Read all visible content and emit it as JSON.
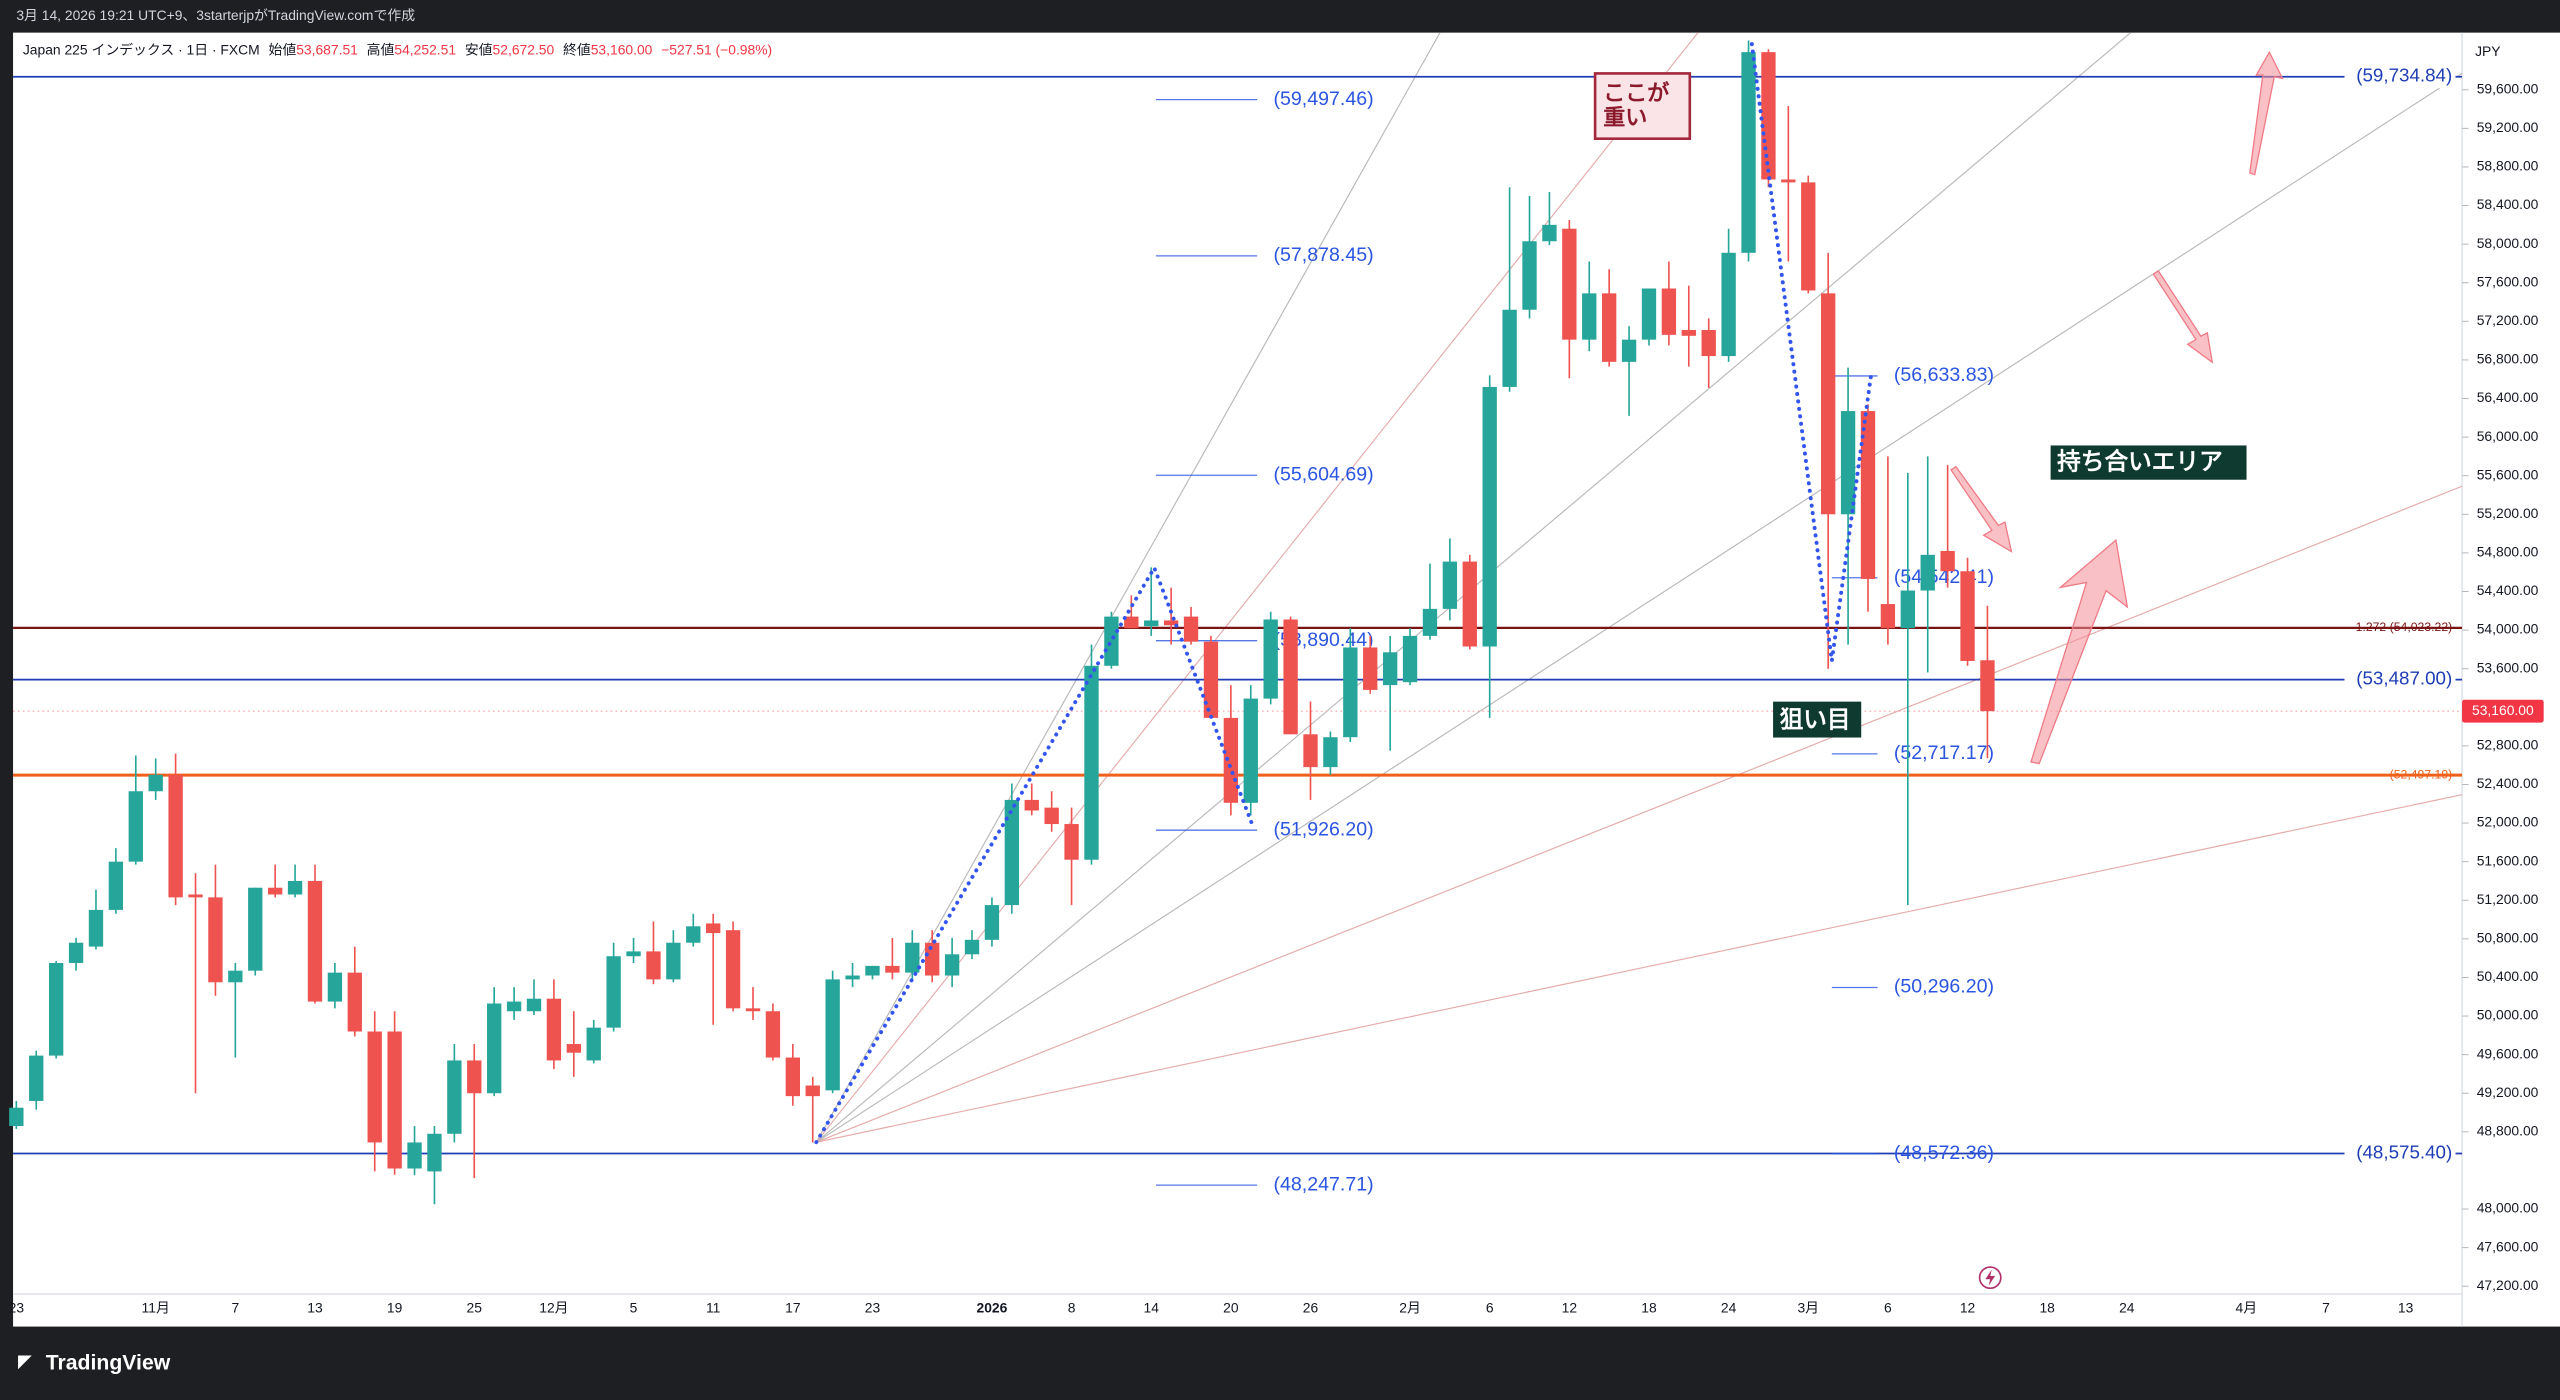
{
  "header": {
    "caption": "3月 14, 2026 19:21 UTC+9、3starterjpがTradingView.comで作成",
    "symbol": "Japan 225 インデックス · 1日 · FXCM",
    "open_label": "始値",
    "open": "53,687.51",
    "high_label": "高値",
    "high": "54,252.51",
    "low_label": "安値",
    "low": "52,672.50",
    "close_label": "終値",
    "close": "53,160.00",
    "change": "−527.51 (−0.98%)",
    "currency": "JPY"
  },
  "footer": {
    "brand": "TradingView"
  },
  "chart_data": {
    "type": "candlestick",
    "up_color": "#26a69a",
    "down_color": "#ef5350",
    "categories": [
      "23",
      null,
      null,
      null,
      null,
      null,
      null,
      "11月",
      null,
      null,
      null,
      "7",
      null,
      null,
      null,
      "13",
      null,
      null,
      null,
      "19",
      null,
      null,
      null,
      "25",
      null,
      null,
      null,
      "12月",
      null,
      null,
      null,
      "5",
      null,
      null,
      null,
      "11",
      null,
      null,
      null,
      "17",
      null,
      null,
      null,
      "23",
      null,
      null,
      null,
      null,
      null,
      "2026",
      null,
      null,
      null,
      "8",
      null,
      null,
      null,
      "14",
      null,
      null,
      null,
      "20",
      null,
      null,
      null,
      "26",
      null,
      null,
      null,
      null,
      "2月",
      null,
      null,
      null,
      "6",
      null,
      null,
      null,
      "12",
      null,
      null,
      null,
      "18",
      null,
      null,
      null,
      "24",
      null,
      null,
      null,
      "3月",
      null,
      null,
      null,
      "6",
      null,
      null,
      null,
      "12",
      null,
      null,
      null,
      "18",
      null,
      null,
      null,
      "24",
      null,
      null,
      null,
      null,
      null,
      "4月",
      null,
      null,
      null,
      "7",
      null,
      null,
      null,
      "13",
      null,
      null
    ],
    "open": [
      48860,
      49120,
      49590,
      50550,
      50720,
      51100,
      51600,
      52330,
      52500,
      51260,
      51230,
      50350,
      50470,
      51330,
      51260,
      51400,
      50150,
      50450,
      49840,
      49840,
      48420,
      48390,
      48780,
      49540,
      49200,
      50050,
      50050,
      50180,
      49710,
      49540,
      49880,
      50620,
      50670,
      50380,
      50760,
      50960,
      50890,
      50080,
      50050,
      49570,
      49280,
      49230,
      50380,
      50420,
      50520,
      50450,
      50760,
      50420,
      50640,
      50790,
      51150,
      52240,
      52160,
      51990,
      51620,
      53630,
      54140,
      54040,
      54100,
      54140,
      53880,
      53090,
      52210,
      53290,
      54110,
      52920,
      52580,
      52890,
      53820,
      53430,
      53460,
      53940,
      54220,
      54710,
      53830,
      56520,
      57320,
      58030,
      58160,
      57010,
      57490,
      56780,
      57010,
      57540,
      57110,
      57110,
      56840,
      57910,
      59990,
      58670,
      58640,
      57490,
      55200,
      56270,
      54270,
      54020,
      54410,
      54820,
      54610,
      53687.51,
      null,
      null,
      null,
      null,
      null,
      null,
      null,
      null,
      null,
      null,
      null,
      null,
      null,
      null,
      null,
      null,
      null,
      null,
      null,
      null,
      null,
      null,
      null
    ],
    "high": [
      49120,
      49640,
      50570,
      50810,
      51310,
      51740,
      52700,
      52670,
      52720,
      51480,
      51570,
      50550,
      51330,
      51570,
      51570,
      51570,
      50550,
      50720,
      50050,
      50050,
      48860,
      48860,
      49710,
      49710,
      50300,
      50300,
      50380,
      50380,
      50050,
      49960,
      50760,
      50810,
      50980,
      50890,
      51060,
      51060,
      50980,
      50300,
      50130,
      49710,
      49370,
      50470,
      50550,
      50520,
      50810,
      50890,
      50890,
      50810,
      50890,
      51230,
      52410,
      52410,
      52330,
      52160,
      53850,
      54190,
      54360,
      54650,
      54440,
      54240,
      53940,
      53430,
      53430,
      54190,
      54140,
      53260,
      52950,
      54020,
      53940,
      53940,
      54020,
      54690,
      54950,
      54780,
      56640,
      58590,
      58500,
      58540,
      58250,
      57820,
      57740,
      57150,
      57540,
      57820,
      57570,
      57230,
      58160,
      60110,
      60020,
      59430,
      58710,
      57910,
      56720,
      56340,
      55800,
      55630,
      55800,
      55710,
      54750,
      54252.51,
      null,
      null,
      null,
      null,
      null,
      null,
      null,
      null,
      null,
      null,
      null,
      null,
      null,
      null,
      null,
      null,
      null,
      null,
      null,
      null,
      null,
      null,
      null
    ],
    "low": [
      48830,
      49030,
      49560,
      50470,
      50690,
      51060,
      51570,
      52240,
      51150,
      49200,
      50210,
      49570,
      50420,
      51230,
      51230,
      50130,
      50080,
      49790,
      48390,
      48355,
      48350,
      48050,
      48690,
      48320,
      49170,
      49960,
      50010,
      49450,
      49370,
      49510,
      49840,
      50550,
      50330,
      50350,
      50720,
      49910,
      50050,
      49960,
      49540,
      49070,
      48690,
      49200,
      50300,
      50380,
      50380,
      50380,
      50350,
      50300,
      50590,
      50720,
      51060,
      52080,
      51910,
      51150,
      51570,
      53600,
      54020,
      53940,
      53850,
      53850,
      53090,
      52080,
      52080,
      53230,
      52920,
      52240,
      52500,
      52840,
      53340,
      52750,
      53430,
      53900,
      54100,
      53800,
      53090,
      56470,
      57230,
      57990,
      56610,
      56890,
      56730,
      56220,
      56950,
      56950,
      56730,
      56510,
      56780,
      57820,
      58590,
      57820,
      57490,
      53600,
      53850,
      54190,
      53850,
      51150,
      53560,
      54440,
      53630,
      52672.5,
      null,
      null,
      null,
      null,
      null,
      null,
      null,
      null,
      null,
      null,
      null,
      null,
      null,
      null,
      null,
      null,
      null,
      null,
      null,
      null,
      null,
      null,
      null
    ],
    "close": [
      49050,
      49590,
      50550,
      50760,
      51100,
      51600,
      52330,
      52500,
      51230,
      51230,
      50350,
      50470,
      51330,
      51260,
      51400,
      50150,
      50450,
      49840,
      48690,
      48420,
      48690,
      48780,
      49540,
      49200,
      50130,
      50150,
      50180,
      49540,
      49620,
      49880,
      50620,
      50670,
      50380,
      50760,
      50930,
      50860,
      50080,
      50050,
      49570,
      49170,
      49170,
      50380,
      50420,
      50520,
      50450,
      50760,
      50420,
      50640,
      50790,
      51150,
      52240,
      52130,
      51990,
      51620,
      53630,
      54140,
      54020,
      54100,
      54050,
      53880,
      53090,
      52210,
      53290,
      54110,
      52920,
      52580,
      52890,
      53820,
      53380,
      53770,
      53940,
      54220,
      54710,
      53830,
      56520,
      57320,
      58030,
      58200,
      57010,
      57490,
      56780,
      57010,
      57540,
      57060,
      57050,
      56840,
      57910,
      59990,
      58670,
      58640,
      57520,
      55200,
      56270,
      54530,
      54020,
      54410,
      54780,
      54610,
      53680,
      53160,
      null,
      null,
      null,
      null,
      null,
      null,
      null,
      null,
      null,
      null,
      null,
      null,
      null,
      null,
      null,
      null,
      null,
      null,
      null,
      null,
      null,
      null,
      null
    ],
    "ylim": [
      47120,
      60192
    ],
    "yticks": [
      {
        "value": 47200,
        "label": "47,200.00"
      },
      {
        "value": 47600,
        "label": "47,600.00"
      },
      {
        "value": 48000,
        "label": "48,000.00"
      },
      {
        "value": 48800,
        "label": "48,800.00"
      },
      {
        "value": 49200,
        "label": "49,200.00"
      },
      {
        "value": 49600,
        "label": "49,600.00"
      },
      {
        "value": 50000,
        "label": "50,000.00"
      },
      {
        "value": 50400,
        "label": "50,400.00"
      },
      {
        "value": 50800,
        "label": "50,800.00"
      },
      {
        "value": 51200,
        "label": "51,200.00"
      },
      {
        "value": 51600,
        "label": "51,600.00"
      },
      {
        "value": 52000,
        "label": "52,000.00"
      },
      {
        "value": 52400,
        "label": "52,400.00"
      },
      {
        "value": 52800,
        "label": "52,800.00"
      },
      {
        "value": 53600,
        "label": "53,600.00"
      },
      {
        "value": 54000,
        "label": "54,000.00"
      },
      {
        "value": 54400,
        "label": "54,400.00"
      },
      {
        "value": 54800,
        "label": "54,800.00"
      },
      {
        "value": 55200,
        "label": "55,200.00"
      },
      {
        "value": 55600,
        "label": "55,600.00"
      },
      {
        "value": 56000,
        "label": "56,000.00"
      },
      {
        "value": 56400,
        "label": "56,400.00"
      },
      {
        "value": 56800,
        "label": "56,800.00"
      },
      {
        "value": 57200,
        "label": "57,200.00"
      },
      {
        "value": 57600,
        "label": "57,600.00"
      },
      {
        "value": 58000,
        "label": "58,000.00"
      },
      {
        "value": 58400,
        "label": "58,400.00"
      },
      {
        "value": 58800,
        "label": "58,800.00"
      },
      {
        "value": 59200,
        "label": "59,200.00"
      },
      {
        "value": 59600,
        "label": "59,600.00"
      }
    ],
    "grid": false,
    "last_price": {
      "value": 53160,
      "label": "53,160.00",
      "color": "#f23645"
    },
    "hlines": [
      {
        "value": 59734.84,
        "label": "(59,734.84)",
        "color": "#1f3db5"
      },
      {
        "value": 54023.22,
        "label": "1.272 (54,023.22)",
        "color": "#7a1414"
      },
      {
        "value": 53487,
        "label": "(53,487.00)",
        "color": "#1f3db5"
      },
      {
        "value": 52497.19,
        "label": "(52,497.19)",
        "color": "#f0601a"
      },
      {
        "value": 48575.4,
        "label": "(48,575.40)",
        "color": "#1f3db5"
      }
    ],
    "fib_levels": [
      [
        {
          "value": 59497.46,
          "label": "(59,497.46)"
        },
        {
          "value": 57878.45,
          "label": "(57,878.45)"
        },
        {
          "value": 55604.69,
          "label": "(55,604.69)"
        },
        {
          "value": 53890.44,
          "label": "(53,890.44)"
        },
        {
          "value": 51926.2,
          "label": "(51,926.20)"
        },
        {
          "value": 48247.71,
          "label": "(48,247.71)"
        }
      ],
      [
        {
          "value": 56633.83,
          "label": "(56,633.83)"
        },
        {
          "value": 54542.41,
          "label": "(54,542.41)"
        },
        {
          "value": 52717.17,
          "label": "(52,717.17)"
        },
        {
          "value": 50296.2,
          "label": "(50,296.20)"
        },
        {
          "value": 48572.36,
          "label": "(48,572.36)"
        }
      ]
    ],
    "fib_color": "#2b55e0",
    "annotations": {
      "heavy": [
        "ここが",
        "重い"
      ],
      "range": "持ち合いエリア",
      "target": "狙い目"
    }
  }
}
